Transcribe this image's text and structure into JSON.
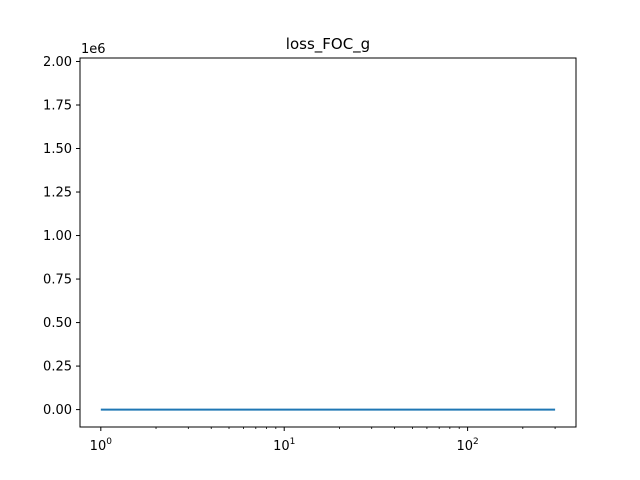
{
  "chart_data": {
    "type": "line",
    "title": "loss_FOC_g",
    "xlabel": "",
    "ylabel": "",
    "xscale": "log",
    "xlim": [
      0.77,
      390
    ],
    "ylim": [
      -100000,
      2020000
    ],
    "y_offset_text": "1e6",
    "grid": false,
    "legend": "none",
    "series": [
      {
        "color": "#1f77b4",
        "x": [
          1,
          300
        ],
        "y": [
          0,
          0
        ]
      }
    ],
    "xticks": [
      {
        "value": 1,
        "base": "10",
        "exp": "0"
      },
      {
        "value": 10,
        "base": "10",
        "exp": "1"
      },
      {
        "value": 100,
        "base": "10",
        "exp": "2"
      }
    ],
    "yticks": [
      {
        "value": 0,
        "label": "0.00"
      },
      {
        "value": 250000,
        "label": "0.25"
      },
      {
        "value": 500000,
        "label": "0.50"
      },
      {
        "value": 750000,
        "label": "0.75"
      },
      {
        "value": 1000000,
        "label": "1.00"
      },
      {
        "value": 1250000,
        "label": "1.25"
      },
      {
        "value": 1500000,
        "label": "1.50"
      },
      {
        "value": 1750000,
        "label": "1.75"
      },
      {
        "value": 2000000,
        "label": "2.00"
      }
    ]
  }
}
